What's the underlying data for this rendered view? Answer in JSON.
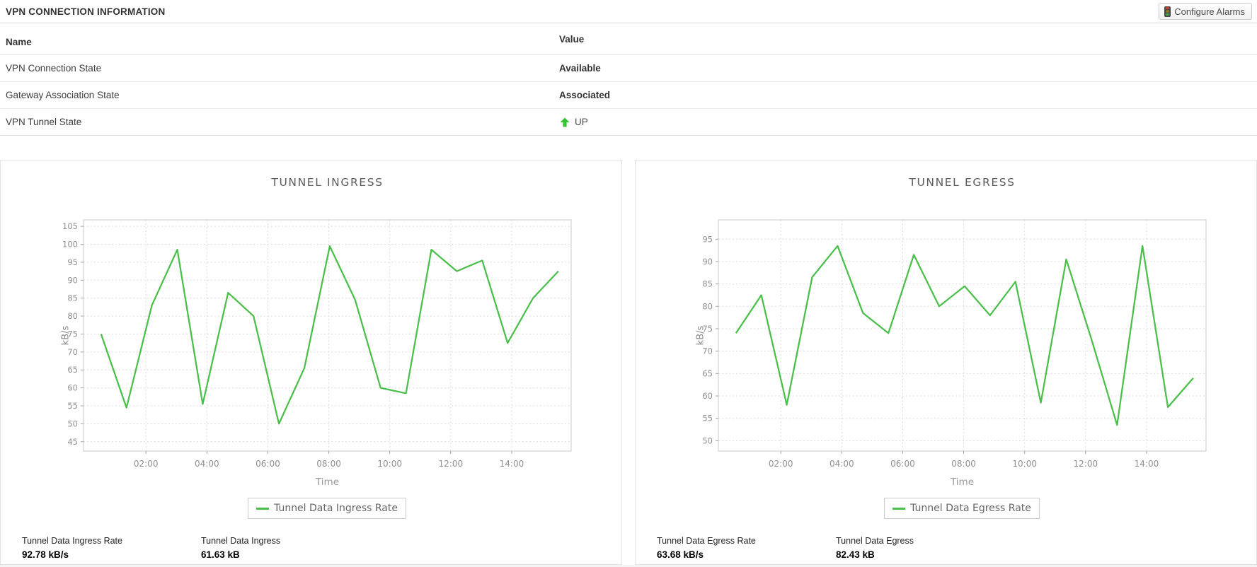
{
  "header": {
    "title": "VPN CONNECTION INFORMATION",
    "configure_alarms": "Configure Alarms"
  },
  "info_table": {
    "name_header": "Name",
    "value_header": "Value",
    "rows": [
      {
        "name": "VPN Connection State",
        "value": "Available"
      },
      {
        "name": "Gateway Association State",
        "value": "Associated"
      },
      {
        "name": "VPN Tunnel State",
        "value": "UP",
        "icon": "up-arrow-icon"
      }
    ]
  },
  "colors": {
    "line_green": "#4abf4a",
    "up_arrow_green": "#2fc52f"
  },
  "chart_data": [
    {
      "type": "line",
      "title": "TUNNEL INGRESS",
      "ylabel": "kB/s",
      "xlabel": "Time",
      "legend": "Tunnel Data Ingress Rate",
      "line_color": "#4abf4a",
      "grid": true,
      "legend_position": "bottom",
      "yticks": [
        45,
        50,
        55,
        60,
        65,
        70,
        75,
        80,
        85,
        90,
        95,
        100,
        105
      ],
      "ylim": [
        42.4,
        106.8
      ],
      "xticks": [
        "02:00",
        "04:00",
        "06:00",
        "08:00",
        "10:00",
        "12:00",
        "14:00"
      ],
      "values": [
        75,
        54.5,
        83,
        98.5,
        55.5,
        86.5,
        80,
        50,
        65.5,
        99.5,
        84.5,
        60,
        58.5,
        98.5,
        92.5,
        95.5,
        72.5,
        85,
        92.5
      ],
      "stats": [
        {
          "label": "Tunnel Data Ingress Rate",
          "value": "92.78 kB/s"
        },
        {
          "label": "Tunnel Data Ingress",
          "value": "61.63 kB"
        }
      ]
    },
    {
      "type": "line",
      "title": "TUNNEL EGRESS",
      "ylabel": "kB/s",
      "xlabel": "Time",
      "legend": "Tunnel Data Egress Rate",
      "line_color": "#4abf4a",
      "grid": true,
      "legend_position": "bottom",
      "yticks": [
        50,
        55,
        60,
        65,
        70,
        75,
        80,
        85,
        90,
        95
      ],
      "ylim": [
        47.7,
        99.3
      ],
      "xticks": [
        "02:00",
        "04:00",
        "06:00",
        "08:00",
        "10:00",
        "12:00",
        "14:00"
      ],
      "values": [
        74,
        82.5,
        58,
        86.5,
        93.5,
        78.5,
        74,
        91.5,
        80,
        84.5,
        78,
        85.5,
        58.5,
        90.5,
        72.5,
        53.5,
        93.5,
        57.5,
        64
      ],
      "stats": [
        {
          "label": "Tunnel Data Egress Rate",
          "value": "63.68 kB/s"
        },
        {
          "label": "Tunnel Data Egress",
          "value": "82.43 kB"
        }
      ]
    }
  ]
}
